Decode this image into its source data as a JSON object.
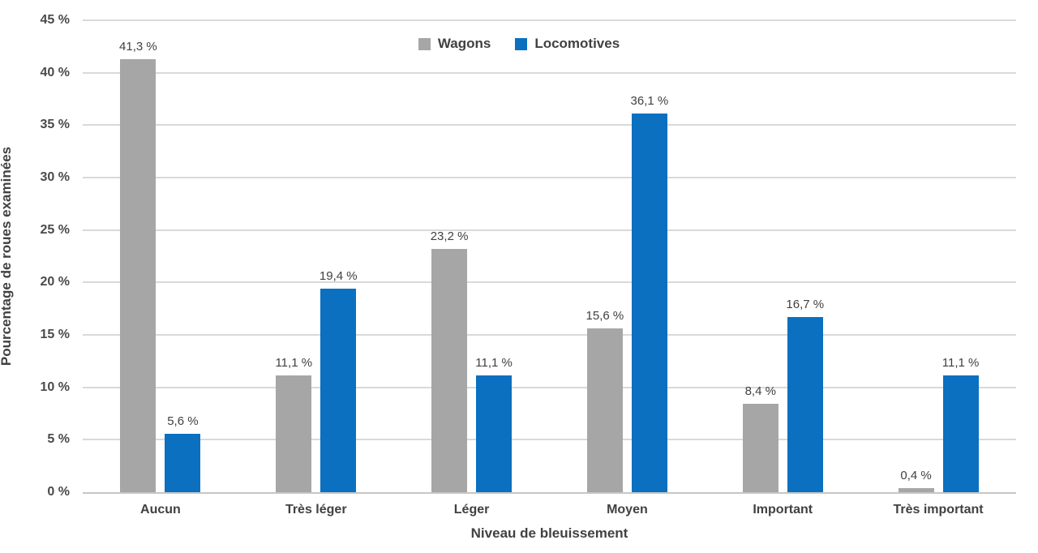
{
  "chart_data": {
    "type": "bar",
    "categories": [
      "Aucun",
      "Très léger",
      "Léger",
      "Moyen",
      "Important",
      "Très important"
    ],
    "series": [
      {
        "name": "Wagons",
        "color": "#A6A6A6",
        "values": [
          41.3,
          11.1,
          23.2,
          15.6,
          8.4,
          0.4
        ],
        "value_labels": [
          "41,3 %",
          "11,1 %",
          "23,2 %",
          "15,6 %",
          "8,4 %",
          "0,4 %"
        ]
      },
      {
        "name": "Locomotives",
        "color": "#0B70C0",
        "values": [
          5.6,
          19.4,
          11.1,
          36.1,
          16.7,
          11.1
        ],
        "value_labels": [
          "5,6 %",
          "19,4 %",
          "11,1 %",
          "36,1 %",
          "16,7 %",
          "11,1 %"
        ]
      }
    ],
    "xlabel": "Niveau de bleuissement",
    "ylabel": "Pourcentage de roues examinées",
    "ylim": [
      0,
      45
    ],
    "ytick_step": 5,
    "ytick_labels": [
      "0 %",
      "5 %",
      "10 %",
      "15 %",
      "20 %",
      "25 %",
      "30 %",
      "35 %",
      "40 %",
      "45 %"
    ],
    "grid": true,
    "legend_position": "top-center",
    "styles": {
      "grid_color": "#D9D9D9",
      "axis_color": "#C6C6C6",
      "label_color": "#404040"
    }
  }
}
